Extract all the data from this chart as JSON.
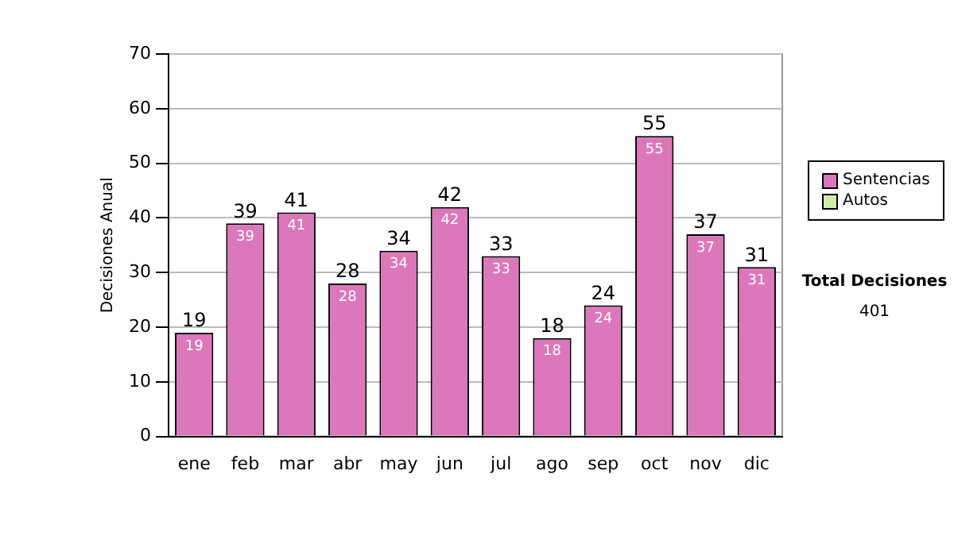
{
  "chart_data": {
    "type": "bar",
    "ylabel": "Decisiones Anual",
    "categories": [
      "ene",
      "feb",
      "mar",
      "abr",
      "may",
      "jun",
      "jul",
      "ago",
      "sep",
      "oct",
      "nov",
      "dic"
    ],
    "series": [
      {
        "name": "Sentencias",
        "color": "#dd77bb",
        "values": [
          19,
          39,
          41,
          28,
          34,
          42,
          33,
          18,
          24,
          55,
          37,
          31
        ],
        "value_labels": [
          "19",
          "39",
          "41",
          "28",
          "34",
          "42",
          "33",
          "18",
          "24",
          "55",
          "37",
          "31"
        ]
      },
      {
        "name": "Autos",
        "color": "#cceeaa",
        "values": [
          0,
          0,
          0,
          0,
          0,
          0,
          0,
          0,
          0,
          0,
          0,
          0
        ]
      }
    ],
    "stacked": true,
    "totals": [
      "19",
      "39",
      "41",
      "28",
      "34",
      "42",
      "33",
      "18",
      "24",
      "55",
      "37",
      "31"
    ],
    "ylim": [
      0,
      70
    ],
    "yticks": [
      0,
      10,
      20,
      30,
      40,
      50,
      60,
      70
    ],
    "grid": "y",
    "legend": "right",
    "annotations": [
      "Total Decisiones",
      "401"
    ]
  }
}
